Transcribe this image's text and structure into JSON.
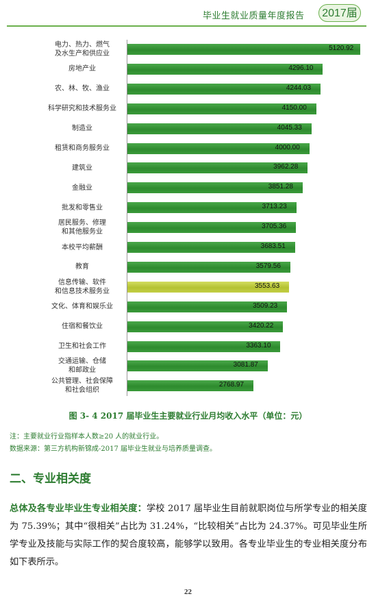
{
  "header": {
    "title": "毕业生就业质量年度报告",
    "year_badge": "2017届"
  },
  "chart_data": {
    "type": "bar",
    "orientation": "horizontal",
    "categories": [
      "电力、热力、燃气\n及水生产和供应业",
      "房地产业",
      "农、林、牧、渔业",
      "科学研究和技术服务业",
      "制造业",
      "租赁和商务服务业",
      "建筑业",
      "金融业",
      "批发和零售业",
      "居民服务、修理\n和其他服务业",
      "本校平均薪酬",
      "教育",
      "信息传输、软件\n和信息技术服务业",
      "文化、体育和娱乐业",
      "住宿和餐饮业",
      "卫生和社会工作",
      "交通运输、仓储\n和邮政业",
      "公共管理、社会保障\n和社会组织"
    ],
    "values": [
      5120.92,
      4296.1,
      4244.03,
      4150.0,
      4045.33,
      4000.0,
      3962.28,
      3851.28,
      3713.23,
      3705.36,
      3683.51,
      3579.56,
      3553.63,
      3509.23,
      3420.22,
      3363.1,
      3081.87,
      2768.97
    ],
    "value_labels": [
      "5120.92",
      "4296.10",
      "4244.03",
      "4150.00",
      "4045.33",
      "4000.00",
      "3962.28",
      "3851.28",
      "3713.23",
      "3705.36",
      "3683.51",
      "3579.56",
      "3553.63",
      "3509.23",
      "3420.22",
      "3363.10",
      "3081.87",
      "2768.97"
    ],
    "highlight_index": 12,
    "colors": {
      "bar": "#3a9a3a",
      "highlight": "#c3cf45"
    },
    "xlim": [
      0,
      5300
    ],
    "grid": false,
    "legend": "none"
  },
  "figure": {
    "caption": "图 3- 4    2017 届毕业生主要就业行业月均收入水平（单位：元）",
    "note": "注：主要就业行业指样本人数≥20 人的就业行业。",
    "source": "数据来源：第三方机构新锦成-2017 届毕业生就业与培养质量调查。"
  },
  "section": {
    "title": "二、专业相关度",
    "lead": "总体及各专业毕业生专业相关度：",
    "body": "学校 2017 届毕业生目前就职岗位与所学专业的相关度为 75.39%；其中“很相关”占比为 31.24%，“比较相关”占比为 24.37%。可见毕业生所学专业及技能与实际工作的契合度较高，能够学以致用。各专业毕业生的专业相关度分布如下表所示。"
  },
  "page_number": "22"
}
